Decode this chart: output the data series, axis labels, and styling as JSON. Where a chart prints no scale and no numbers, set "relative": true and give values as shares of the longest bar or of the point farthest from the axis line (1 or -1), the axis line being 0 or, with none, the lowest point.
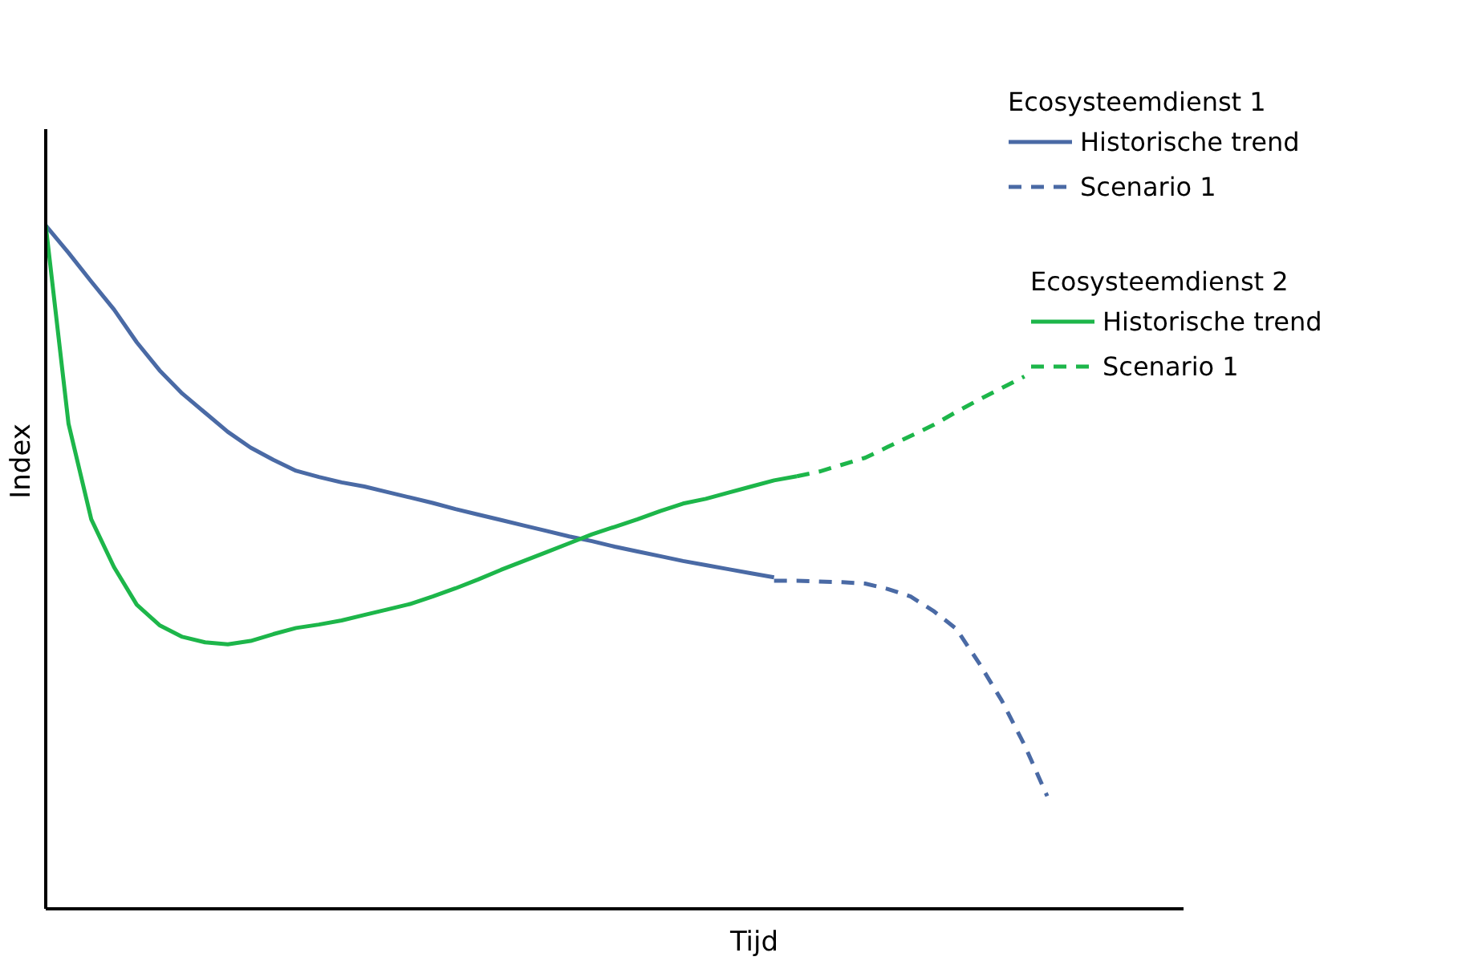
{
  "chart_data": {
    "type": "line",
    "relative": true,
    "xlabel": "Tijd",
    "ylabel": "Index",
    "legend": "top right",
    "legend_title": [
      "Ecosysteemdienst 1",
      "Ecosysteemdienst 2"
    ],
    "categories": [
      null,
      null,
      null,
      null,
      null,
      null,
      null,
      null,
      null,
      null,
      null,
      null,
      null,
      null,
      null,
      null,
      null,
      null,
      null,
      null,
      null,
      null,
      null,
      null,
      null,
      null,
      null,
      null,
      null,
      null,
      null,
      null,
      null,
      null,
      null,
      null,
      null,
      null,
      null,
      null,
      null,
      null,
      null,
      null,
      null
    ],
    "series": [
      {
        "name": "Historische trend",
        "color": "#4a6aa5",
        "line_style": "solid",
        "values": [
          1,
          0.96,
          0.918,
          0.877,
          0.829,
          0.788,
          0.754,
          0.726,
          0.698,
          0.675,
          0.657,
          0.641,
          0.632,
          0.624,
          0.618,
          0.61,
          0.602,
          0.594,
          0.585,
          0.577,
          0.569,
          0.561,
          0.553,
          0.545,
          0.538,
          0.53,
          0.523,
          0.516,
          0.509,
          0.503,
          0.497,
          0.491,
          0.485,
          null,
          null,
          null,
          null,
          null,
          null,
          null,
          null,
          null,
          null,
          null,
          null
        ]
      },
      {
        "name": "Scenario 1",
        "color": "#4a6aa5",
        "line_style": "dashed",
        "values": [
          null,
          null,
          null,
          null,
          null,
          null,
          null,
          null,
          null,
          null,
          null,
          null,
          null,
          null,
          null,
          null,
          null,
          null,
          null,
          null,
          null,
          null,
          null,
          null,
          null,
          null,
          null,
          null,
          null,
          null,
          null,
          null,
          0.48,
          0.48,
          0.479,
          0.478,
          0.476,
          0.468,
          0.457,
          0.436,
          0.41,
          0.36,
          0.305,
          0.24,
          0.165
        ]
      },
      {
        "name": "Historische trend",
        "color": "#1db64a",
        "line_style": "solid",
        "values": [
          1,
          0.71,
          0.57,
          0.5,
          0.445,
          0.415,
          0.398,
          0.39,
          0.387,
          0.392,
          0.402,
          0.411,
          0.416,
          0.422,
          0.43,
          0.438,
          0.446,
          0.457,
          0.469,
          0.482,
          0.496,
          0.509,
          0.522,
          0.535,
          0.548,
          0.559,
          0.57,
          0.582,
          0.593,
          0.6,
          0.609,
          0.618,
          0.627,
          0.633,
          null,
          null,
          null,
          null,
          null,
          null,
          null,
          null,
          null,
          null,
          null
        ]
      },
      {
        "name": "Scenario 1",
        "color": "#1db64a",
        "line_style": "dashed",
        "values": [
          null,
          null,
          null,
          null,
          null,
          null,
          null,
          null,
          null,
          null,
          null,
          null,
          null,
          null,
          null,
          null,
          null,
          null,
          null,
          null,
          null,
          null,
          null,
          null,
          null,
          null,
          null,
          null,
          null,
          null,
          null,
          null,
          null,
          0.633,
          0.64,
          0.65,
          0.66,
          0.676,
          0.692,
          0.708,
          0.727,
          0.745,
          0.762,
          0.779,
          null
        ]
      }
    ]
  }
}
